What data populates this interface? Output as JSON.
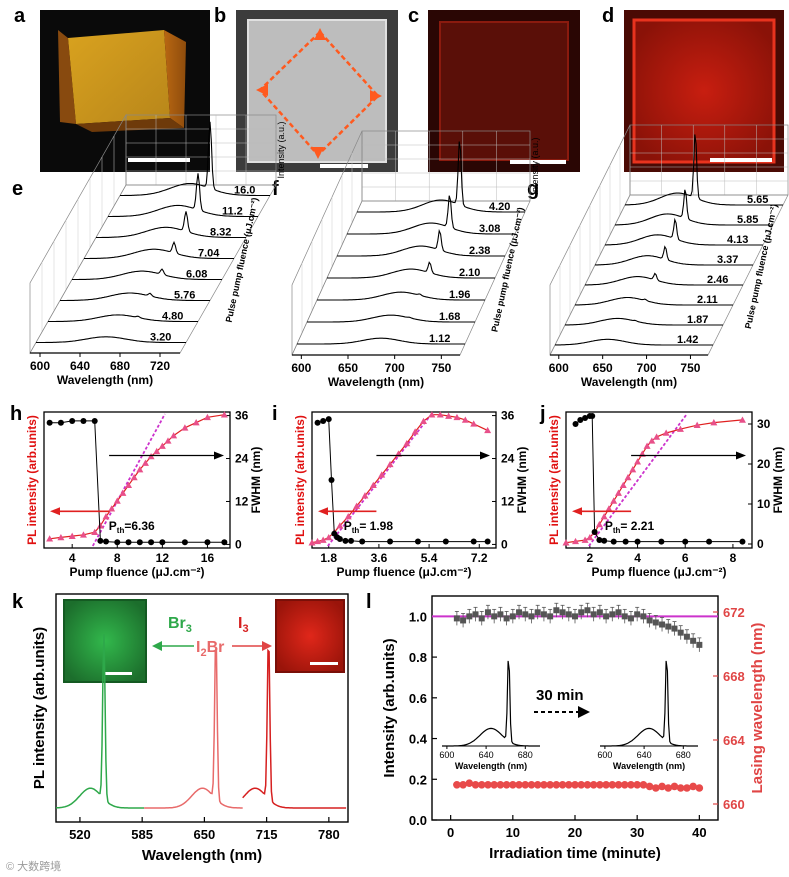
{
  "panel_letters": [
    "a",
    "b",
    "c",
    "d",
    "e",
    "f",
    "g",
    "h",
    "i",
    "j",
    "k",
    "l"
  ],
  "chart_data": [
    {
      "panel": "a",
      "type": "image",
      "description_label": "",
      "scale_bar": true
    },
    {
      "panel": "b",
      "type": "image",
      "scale_bar": true
    },
    {
      "panel": "c",
      "type": "image",
      "scale_bar": true
    },
    {
      "panel": "d",
      "type": "image",
      "scale_bar": true
    },
    {
      "panel": "e",
      "type": "waterfall",
      "xlabel": "Wavelength (nm)",
      "ylabel": "Pulse pump fluence (μJ.cm⁻²)",
      "zlabel": "Intensity (a.u.)",
      "xticks": [
        "600",
        "640",
        "680",
        "720"
      ],
      "xlim": [
        590,
        740
      ],
      "fluences": [
        "16.0",
        "11.2",
        "8.32",
        "7.04",
        "6.08",
        "5.76",
        "4.80",
        "3.20"
      ],
      "peak_wavelength": 680,
      "peak_heights": [
        1.0,
        0.55,
        0.3,
        0.16,
        0.08,
        0.04,
        0.02,
        0.0
      ]
    },
    {
      "panel": "f",
      "type": "waterfall",
      "xlabel": "Wavelength (nm)",
      "ylabel": "Pulse pump fluence (μJ.cm⁻²)",
      "zlabel": "Intensity (a.u.)",
      "xticks": [
        "600",
        "650",
        "700",
        "750"
      ],
      "xlim": [
        590,
        770
      ],
      "fluences": [
        "4.20",
        "3.08",
        "2.38",
        "2.10",
        "1.96",
        "1.68",
        "1.12"
      ],
      "peak_wavelength": 700,
      "peak_heights": [
        1.0,
        0.5,
        0.3,
        0.16,
        0.02,
        0.01,
        0.0
      ]
    },
    {
      "panel": "g",
      "type": "waterfall",
      "xlabel": "Wavelength (nm)",
      "ylabel": "Pulse pump fluence (μJ.cm⁻²)",
      "zlabel": "Intensity (a.u.)",
      "xticks": [
        "600",
        "650",
        "700",
        "750"
      ],
      "xlim": [
        590,
        770
      ],
      "fluences": [
        "5.65",
        "5.85",
        "4.13",
        "3.37",
        "2.46",
        "2.11",
        "1.87",
        "1.42"
      ],
      "peak_wavelength": 670,
      "peak_heights": [
        1.0,
        0.45,
        0.3,
        0.2,
        0.1,
        0.02,
        0.01,
        0.0
      ]
    },
    {
      "panel": "h",
      "type": "scatter",
      "xlabel": "Pump fluence (μJ.cm⁻²)",
      "ylabel_left": "PL intensity (arb.units)",
      "ylabel_right": "FWHM (nm)",
      "xlim": [
        1.5,
        18
      ],
      "xticks": [
        4,
        8,
        12,
        16
      ],
      "y2lim": [
        -1,
        37
      ],
      "y2ticks": [
        0,
        12,
        24,
        36
      ],
      "threshold_label": "P",
      "threshold_sub": "th",
      "threshold_value": "=6.36",
      "threshold": 6.36,
      "pl_x": [
        2,
        3,
        4,
        5,
        6,
        6.5,
        7,
        7.5,
        8,
        8.5,
        9,
        9.5,
        10,
        10.5,
        11,
        11.5,
        12,
        12.5,
        13,
        14,
        15,
        16,
        17.5
      ],
      "pl_y": [
        0.05,
        0.06,
        0.07,
        0.08,
        0.1,
        0.15,
        0.22,
        0.28,
        0.34,
        0.4,
        0.46,
        0.52,
        0.58,
        0.63,
        0.68,
        0.72,
        0.76,
        0.8,
        0.84,
        0.9,
        0.94,
        0.98,
        1.0
      ],
      "fwhm_x": [
        2,
        3,
        4,
        5,
        6,
        6.5,
        7,
        8,
        9,
        10,
        11,
        12,
        14,
        16,
        17.5
      ],
      "fwhm_y": [
        34,
        34,
        34.5,
        34.5,
        34.5,
        1,
        0.8,
        0.6,
        0.6,
        0.6,
        0.6,
        0.6,
        0.6,
        0.6,
        0.6
      ]
    },
    {
      "panel": "i",
      "type": "scatter",
      "xlabel": "Pump fluence (μJ.cm⁻²)",
      "ylabel_left": "PL intensity (arb.units)",
      "ylabel_right": "FWHM (nm)",
      "xlim": [
        1.2,
        7.8
      ],
      "xticks": [
        1.8,
        3.6,
        5.4,
        7.2
      ],
      "y2lim": [
        -1,
        37
      ],
      "y2ticks": [
        0,
        12,
        24,
        36
      ],
      "threshold_label": "P",
      "threshold_sub": "th",
      "threshold_value": "= 1.98",
      "threshold": 1.98,
      "pl_x": [
        1.2,
        1.4,
        1.6,
        1.8,
        2.0,
        2.2,
        2.5,
        2.8,
        3.1,
        3.4,
        3.7,
        4.0,
        4.3,
        4.6,
        4.9,
        5.2,
        5.5,
        5.8,
        6.1,
        6.4,
        6.7,
        7.0,
        7.5
      ],
      "pl_y": [
        0.02,
        0.03,
        0.04,
        0.06,
        0.1,
        0.15,
        0.22,
        0.3,
        0.38,
        0.46,
        0.54,
        0.62,
        0.7,
        0.78,
        0.87,
        0.95,
        1.0,
        1.0,
        0.99,
        0.98,
        0.96,
        0.93,
        0.88
      ],
      "fwhm_x": [
        1.4,
        1.6,
        1.8,
        1.9,
        2.0,
        2.1,
        2.2,
        2.4,
        2.6,
        3.0,
        4.0,
        5.0,
        6.0,
        7.0,
        7.5
      ],
      "fwhm_y": [
        34,
        34.5,
        35,
        18,
        3,
        2,
        1.5,
        1,
        1,
        0.8,
        0.8,
        0.8,
        0.8,
        0.8,
        0.8
      ]
    },
    {
      "panel": "j",
      "type": "scatter",
      "xlabel": "Pump fluence (μJ.cm⁻²)",
      "ylabel_left": "PL intensity (arb.units)",
      "ylabel_right": "FWHM (nm)",
      "xlim": [
        1.0,
        8.8
      ],
      "xticks": [
        2,
        4,
        6,
        8
      ],
      "y2lim": [
        -1,
        33
      ],
      "y2ticks": [
        0,
        10,
        20,
        30
      ],
      "threshold_label": "P",
      "threshold_sub": "th",
      "threshold_value": "= 2.21",
      "threshold": 2.21,
      "pl_x": [
        1.0,
        1.4,
        1.8,
        2.0,
        2.2,
        2.4,
        2.6,
        2.8,
        3.0,
        3.2,
        3.4,
        3.6,
        3.8,
        4.0,
        4.2,
        4.4,
        4.6,
        4.8,
        5.2,
        5.8,
        6.5,
        7.2,
        8.4
      ],
      "pl_y": [
        0.02,
        0.03,
        0.04,
        0.06,
        0.1,
        0.16,
        0.22,
        0.28,
        0.34,
        0.4,
        0.46,
        0.52,
        0.58,
        0.64,
        0.7,
        0.76,
        0.8,
        0.83,
        0.86,
        0.89,
        0.92,
        0.94,
        0.96
      ],
      "fwhm_x": [
        1.4,
        1.6,
        1.8,
        2.0,
        2.1,
        2.2,
        2.4,
        2.6,
        3.0,
        3.5,
        4.0,
        5.0,
        6.0,
        7.0,
        8.4
      ],
      "fwhm_y": [
        30,
        31,
        31.5,
        32,
        32,
        3,
        1,
        0.8,
        0.6,
        0.6,
        0.6,
        0.6,
        0.6,
        0.6,
        0.6
      ]
    },
    {
      "panel": "k",
      "type": "line",
      "xlabel": "Wavelength (nm)",
      "ylabel": "PL intensity (arb.units)",
      "xlim": [
        495,
        800
      ],
      "xticks": [
        "520",
        "585",
        "650",
        "715",
        "780"
      ],
      "labels": {
        "left": "Br",
        "left_sub": "3",
        "center": "I",
        "center_sub": "2",
        "center_tail": "Br",
        "right": "I",
        "right_sub": "3"
      },
      "peaks": [
        {
          "name": "Br3",
          "color": "#2ea84a",
          "center": 545,
          "height": 1.0
        },
        {
          "name": "I2Br",
          "color": "#e86a6a",
          "center": 662,
          "height": 1.0
        },
        {
          "name": "I3",
          "color": "#d62020",
          "center": 717,
          "height": 1.0
        }
      ]
    },
    {
      "panel": "l",
      "type": "scatter",
      "xlabel": "Irradiation time (minute)",
      "ylabel_left": "Intensity (arb.units)",
      "ylabel_right": "Lasing wavelength (nm)",
      "xlim": [
        -3,
        43
      ],
      "xticks": [
        0,
        10,
        20,
        30,
        40
      ],
      "ylim": [
        0.0,
        1.1
      ],
      "yticks": [
        "0.0",
        "0.2",
        "0.4",
        "0.6",
        "0.8",
        "1.0"
      ],
      "y2lim": [
        659.0,
        673.0
      ],
      "y2ticks": [
        "660",
        "664",
        "668",
        "672"
      ],
      "reference_line": 1.0,
      "annotation": "30 min",
      "inset_xlabel": "Wavelength (nm)",
      "inset_xticks": [
        "600",
        "640",
        "680"
      ],
      "intensity_x": [
        1,
        2,
        3,
        4,
        5,
        6,
        7,
        8,
        9,
        10,
        11,
        12,
        13,
        14,
        15,
        16,
        17,
        18,
        19,
        20,
        21,
        22,
        23,
        24,
        25,
        26,
        27,
        28,
        29,
        30,
        31,
        32,
        33,
        34,
        35,
        36,
        37,
        38,
        39,
        40
      ],
      "intensity_y": [
        0.99,
        0.98,
        1.0,
        1.01,
        0.99,
        1.02,
        1.0,
        1.01,
        0.99,
        1.0,
        1.02,
        1.01,
        1.0,
        1.02,
        1.01,
        1.0,
        1.03,
        1.02,
        1.01,
        1.0,
        1.02,
        1.03,
        1.01,
        1.02,
        1.0,
        1.01,
        1.02,
        1.0,
        0.99,
        1.01,
        1.0,
        0.98,
        0.97,
        0.96,
        0.95,
        0.94,
        0.92,
        0.9,
        0.88,
        0.86
      ],
      "wavelength_x": [
        1,
        2,
        3,
        4,
        5,
        6,
        7,
        8,
        9,
        10,
        11,
        12,
        13,
        14,
        15,
        16,
        17,
        18,
        19,
        20,
        21,
        22,
        23,
        24,
        25,
        26,
        27,
        28,
        29,
        30,
        31,
        32,
        33,
        34,
        35,
        36,
        37,
        38,
        39,
        40
      ],
      "wavelength_y": [
        661.2,
        661.2,
        661.3,
        661.2,
        661.2,
        661.2,
        661.2,
        661.2,
        661.2,
        661.2,
        661.2,
        661.2,
        661.2,
        661.2,
        661.2,
        661.2,
        661.2,
        661.2,
        661.2,
        661.2,
        661.2,
        661.2,
        661.2,
        661.2,
        661.2,
        661.2,
        661.2,
        661.2,
        661.2,
        661.2,
        661.2,
        661.1,
        661.0,
        661.1,
        661.0,
        661.1,
        661.0,
        661.0,
        661.1,
        661.0
      ]
    }
  ],
  "colors": {
    "red": "#e02020",
    "pink_marker": "#e8508a",
    "green": "#2ea84a",
    "salmon": "#e86a6a",
    "magenta_line": "#cc33cc",
    "lasing": "#e84a4a"
  },
  "watermark": "© 大数跨境"
}
